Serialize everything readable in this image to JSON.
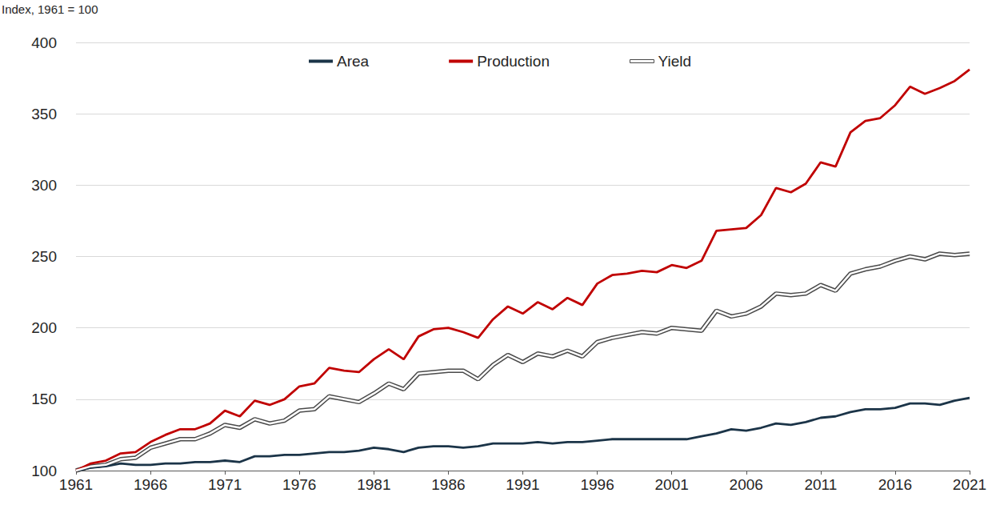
{
  "chart_data": {
    "type": "line",
    "ylabel": "Index, 1961 = 100",
    "x": [
      1961,
      1962,
      1963,
      1964,
      1965,
      1966,
      1967,
      1968,
      1969,
      1970,
      1971,
      1972,
      1973,
      1974,
      1975,
      1976,
      1977,
      1978,
      1979,
      1980,
      1981,
      1982,
      1983,
      1984,
      1985,
      1986,
      1987,
      1988,
      1989,
      1990,
      1991,
      1992,
      1993,
      1994,
      1995,
      1996,
      1997,
      1998,
      1999,
      2000,
      2001,
      2002,
      2003,
      2004,
      2005,
      2006,
      2007,
      2008,
      2009,
      2010,
      2011,
      2012,
      2013,
      2014,
      2015,
      2016,
      2017,
      2018,
      2019,
      2020,
      2021
    ],
    "xlim": [
      1961,
      2021
    ],
    "xticks": [
      1961,
      1966,
      1971,
      1976,
      1981,
      1986,
      1991,
      1996,
      2001,
      2006,
      2011,
      2016,
      2021
    ],
    "ylim": [
      100,
      400
    ],
    "yticks": [
      100,
      150,
      200,
      250,
      300,
      350,
      400
    ],
    "grid": true,
    "legend": "top",
    "marker": "none",
    "series": [
      {
        "name": "Area",
        "color": "#1b3448",
        "line_style": "solid",
        "values": [
          100,
          102,
          103,
          105,
          104,
          104,
          105,
          105,
          106,
          106,
          107,
          106,
          110,
          110,
          111,
          111,
          112,
          113,
          113,
          114,
          116,
          115,
          113,
          116,
          117,
          117,
          116,
          117,
          119,
          119,
          119,
          120,
          119,
          120,
          120,
          121,
          122,
          122,
          122,
          122,
          122,
          122,
          124,
          126,
          129,
          128,
          130,
          133,
          132,
          134,
          137,
          138,
          141,
          143,
          143,
          144,
          147,
          147,
          146,
          149,
          151
        ]
      },
      {
        "name": "Production",
        "color": "#c00000",
        "line_style": "solid",
        "values": [
          100,
          105,
          107,
          112,
          113,
          120,
          125,
          129,
          129,
          133,
          142,
          138,
          149,
          146,
          150,
          159,
          161,
          172,
          170,
          169,
          178,
          185,
          178,
          194,
          199,
          200,
          197,
          193,
          206,
          215,
          210,
          218,
          213,
          221,
          216,
          231,
          237,
          238,
          240,
          239,
          244,
          242,
          247,
          268,
          269,
          270,
          279,
          298,
          295,
          301,
          316,
          313,
          337,
          345,
          347,
          356,
          369,
          364,
          368,
          373,
          381
        ]
      },
      {
        "name": "Yield",
        "color": "#ffffff",
        "line_style": "double",
        "values": [
          100,
          103,
          104,
          108,
          109,
          116,
          119,
          122,
          122,
          126,
          132,
          130,
          136,
          133,
          135,
          142,
          143,
          152,
          150,
          148,
          154,
          161,
          157,
          168,
          169,
          170,
          170,
          164,
          174,
          181,
          176,
          182,
          180,
          184,
          180,
          190,
          193,
          195,
          197,
          196,
          200,
          199,
          198,
          212,
          208,
          210,
          215,
          224,
          223,
          224,
          230,
          226,
          238,
          241,
          243,
          247,
          250,
          248,
          252,
          251,
          252
        ]
      }
    ]
  }
}
